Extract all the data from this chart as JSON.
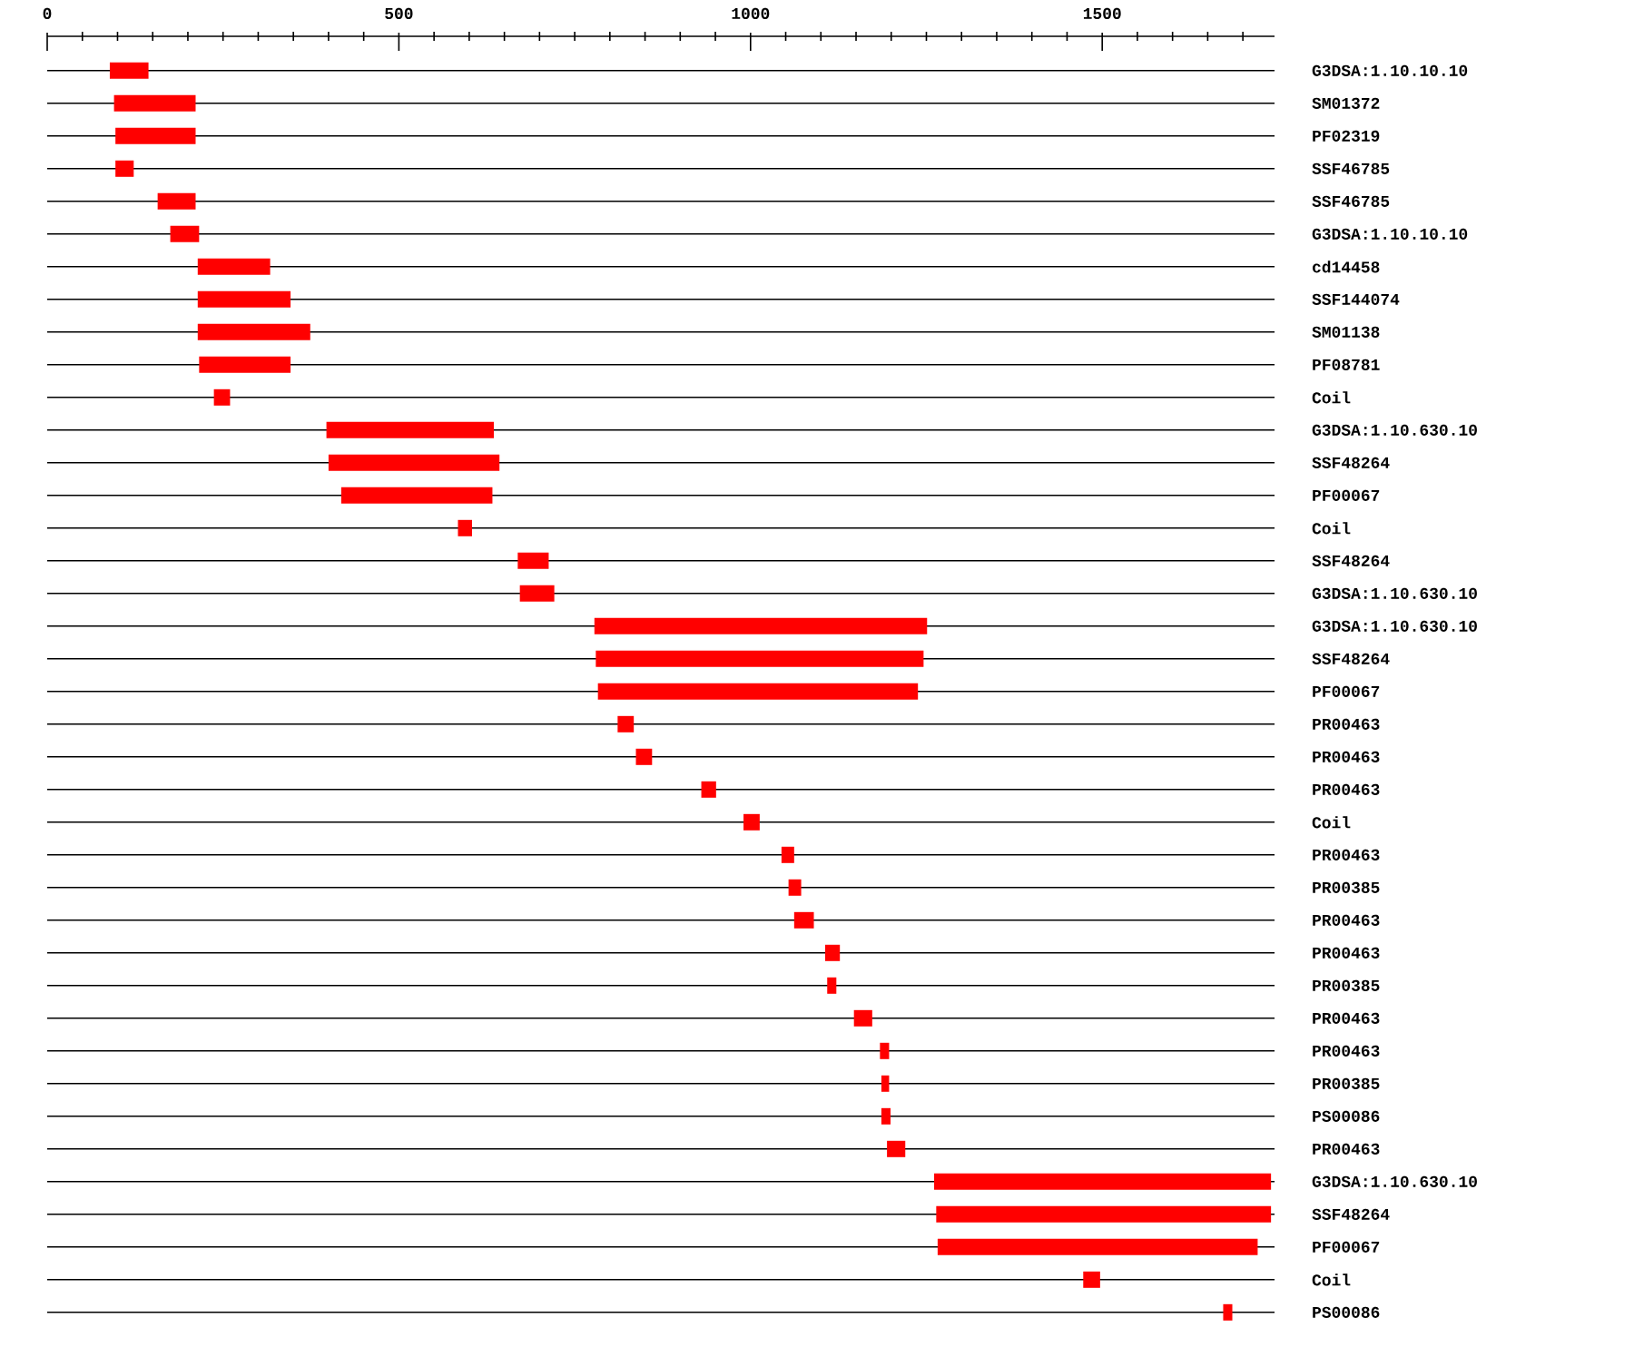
{
  "chart_data": {
    "type": "bar",
    "orientation": "horizontal",
    "color": "#ff0000",
    "grid": "y",
    "categories": [
      "G3DSA:1.10.10.10",
      "SM01372",
      "PF02319",
      "SSF46785",
      "SSF46785",
      "G3DSA:1.10.10.10",
      "cd14458",
      "SSF144074",
      "SM01138",
      "PF08781",
      "Coil",
      "G3DSA:1.10.630.10",
      "SSF48264",
      "PF00067",
      "Coil",
      "SSF48264",
      "G3DSA:1.10.630.10",
      "G3DSA:1.10.630.10",
      "SSF48264",
      "PF00067",
      "PR00463",
      "PR00463",
      "PR00463",
      "Coil",
      "PR00463",
      "PR00385",
      "PR00463",
      "PR00463",
      "PR00385",
      "PR00463",
      "PR00463",
      "PR00385",
      "PS00086",
      "PR00463",
      "G3DSA:1.10.630.10",
      "SSF48264",
      "PF00067",
      "Coil",
      "PS00086"
    ],
    "base": [
      89,
      95,
      97,
      97,
      157,
      175,
      214,
      214,
      214,
      216,
      237,
      397,
      400,
      418,
      584,
      669,
      672,
      778,
      780,
      783,
      811,
      837,
      930,
      990,
      1044,
      1054,
      1062,
      1106,
      1109,
      1147,
      1184,
      1186,
      1186,
      1194,
      1261,
      1264,
      1266,
      1473,
      1672
    ],
    "values": [
      55,
      116,
      114,
      26,
      54,
      41,
      103,
      132,
      160,
      130,
      23,
      238,
      243,
      215,
      20,
      44,
      49,
      473,
      466,
      455,
      23,
      23,
      21,
      23,
      18,
      18,
      28,
      21,
      13,
      26,
      13,
      11,
      13,
      26,
      479,
      476,
      455,
      24,
      13
    ],
    "xlim": [
      0,
      1745
    ],
    "xticks": [
      0,
      {
        "value": 50,
        "label": null
      },
      {
        "value": 100,
        "label": null
      },
      {
        "value": 150,
        "label": null
      },
      {
        "value": 200,
        "label": null
      },
      {
        "value": 250,
        "label": null
      },
      {
        "value": 300,
        "label": null
      },
      {
        "value": 350,
        "label": null
      },
      {
        "value": 400,
        "label": null
      },
      {
        "value": 450,
        "label": null
      },
      500,
      {
        "value": 550,
        "label": null
      },
      {
        "value": 600,
        "label": null
      },
      {
        "value": 650,
        "label": null
      },
      {
        "value": 700,
        "label": null
      },
      {
        "value": 750,
        "label": null
      },
      {
        "value": 800,
        "label": null
      },
      {
        "value": 850,
        "label": null
      },
      {
        "value": 900,
        "label": null
      },
      {
        "value": 950,
        "label": null
      },
      1000,
      {
        "value": 1050,
        "label": null
      },
      {
        "value": 1100,
        "label": null
      },
      {
        "value": 1150,
        "label": null
      },
      {
        "value": 1200,
        "label": null
      },
      {
        "value": 1250,
        "label": null
      },
      {
        "value": 1300,
        "label": null
      },
      {
        "value": 1350,
        "label": null
      },
      {
        "value": 1400,
        "label": null
      },
      {
        "value": 1450,
        "label": null
      },
      1500,
      {
        "value": 1550,
        "label": null
      },
      {
        "value": 1600,
        "label": null
      },
      {
        "value": 1650,
        "label": null
      },
      {
        "value": 1700,
        "label": null
      }
    ]
  }
}
